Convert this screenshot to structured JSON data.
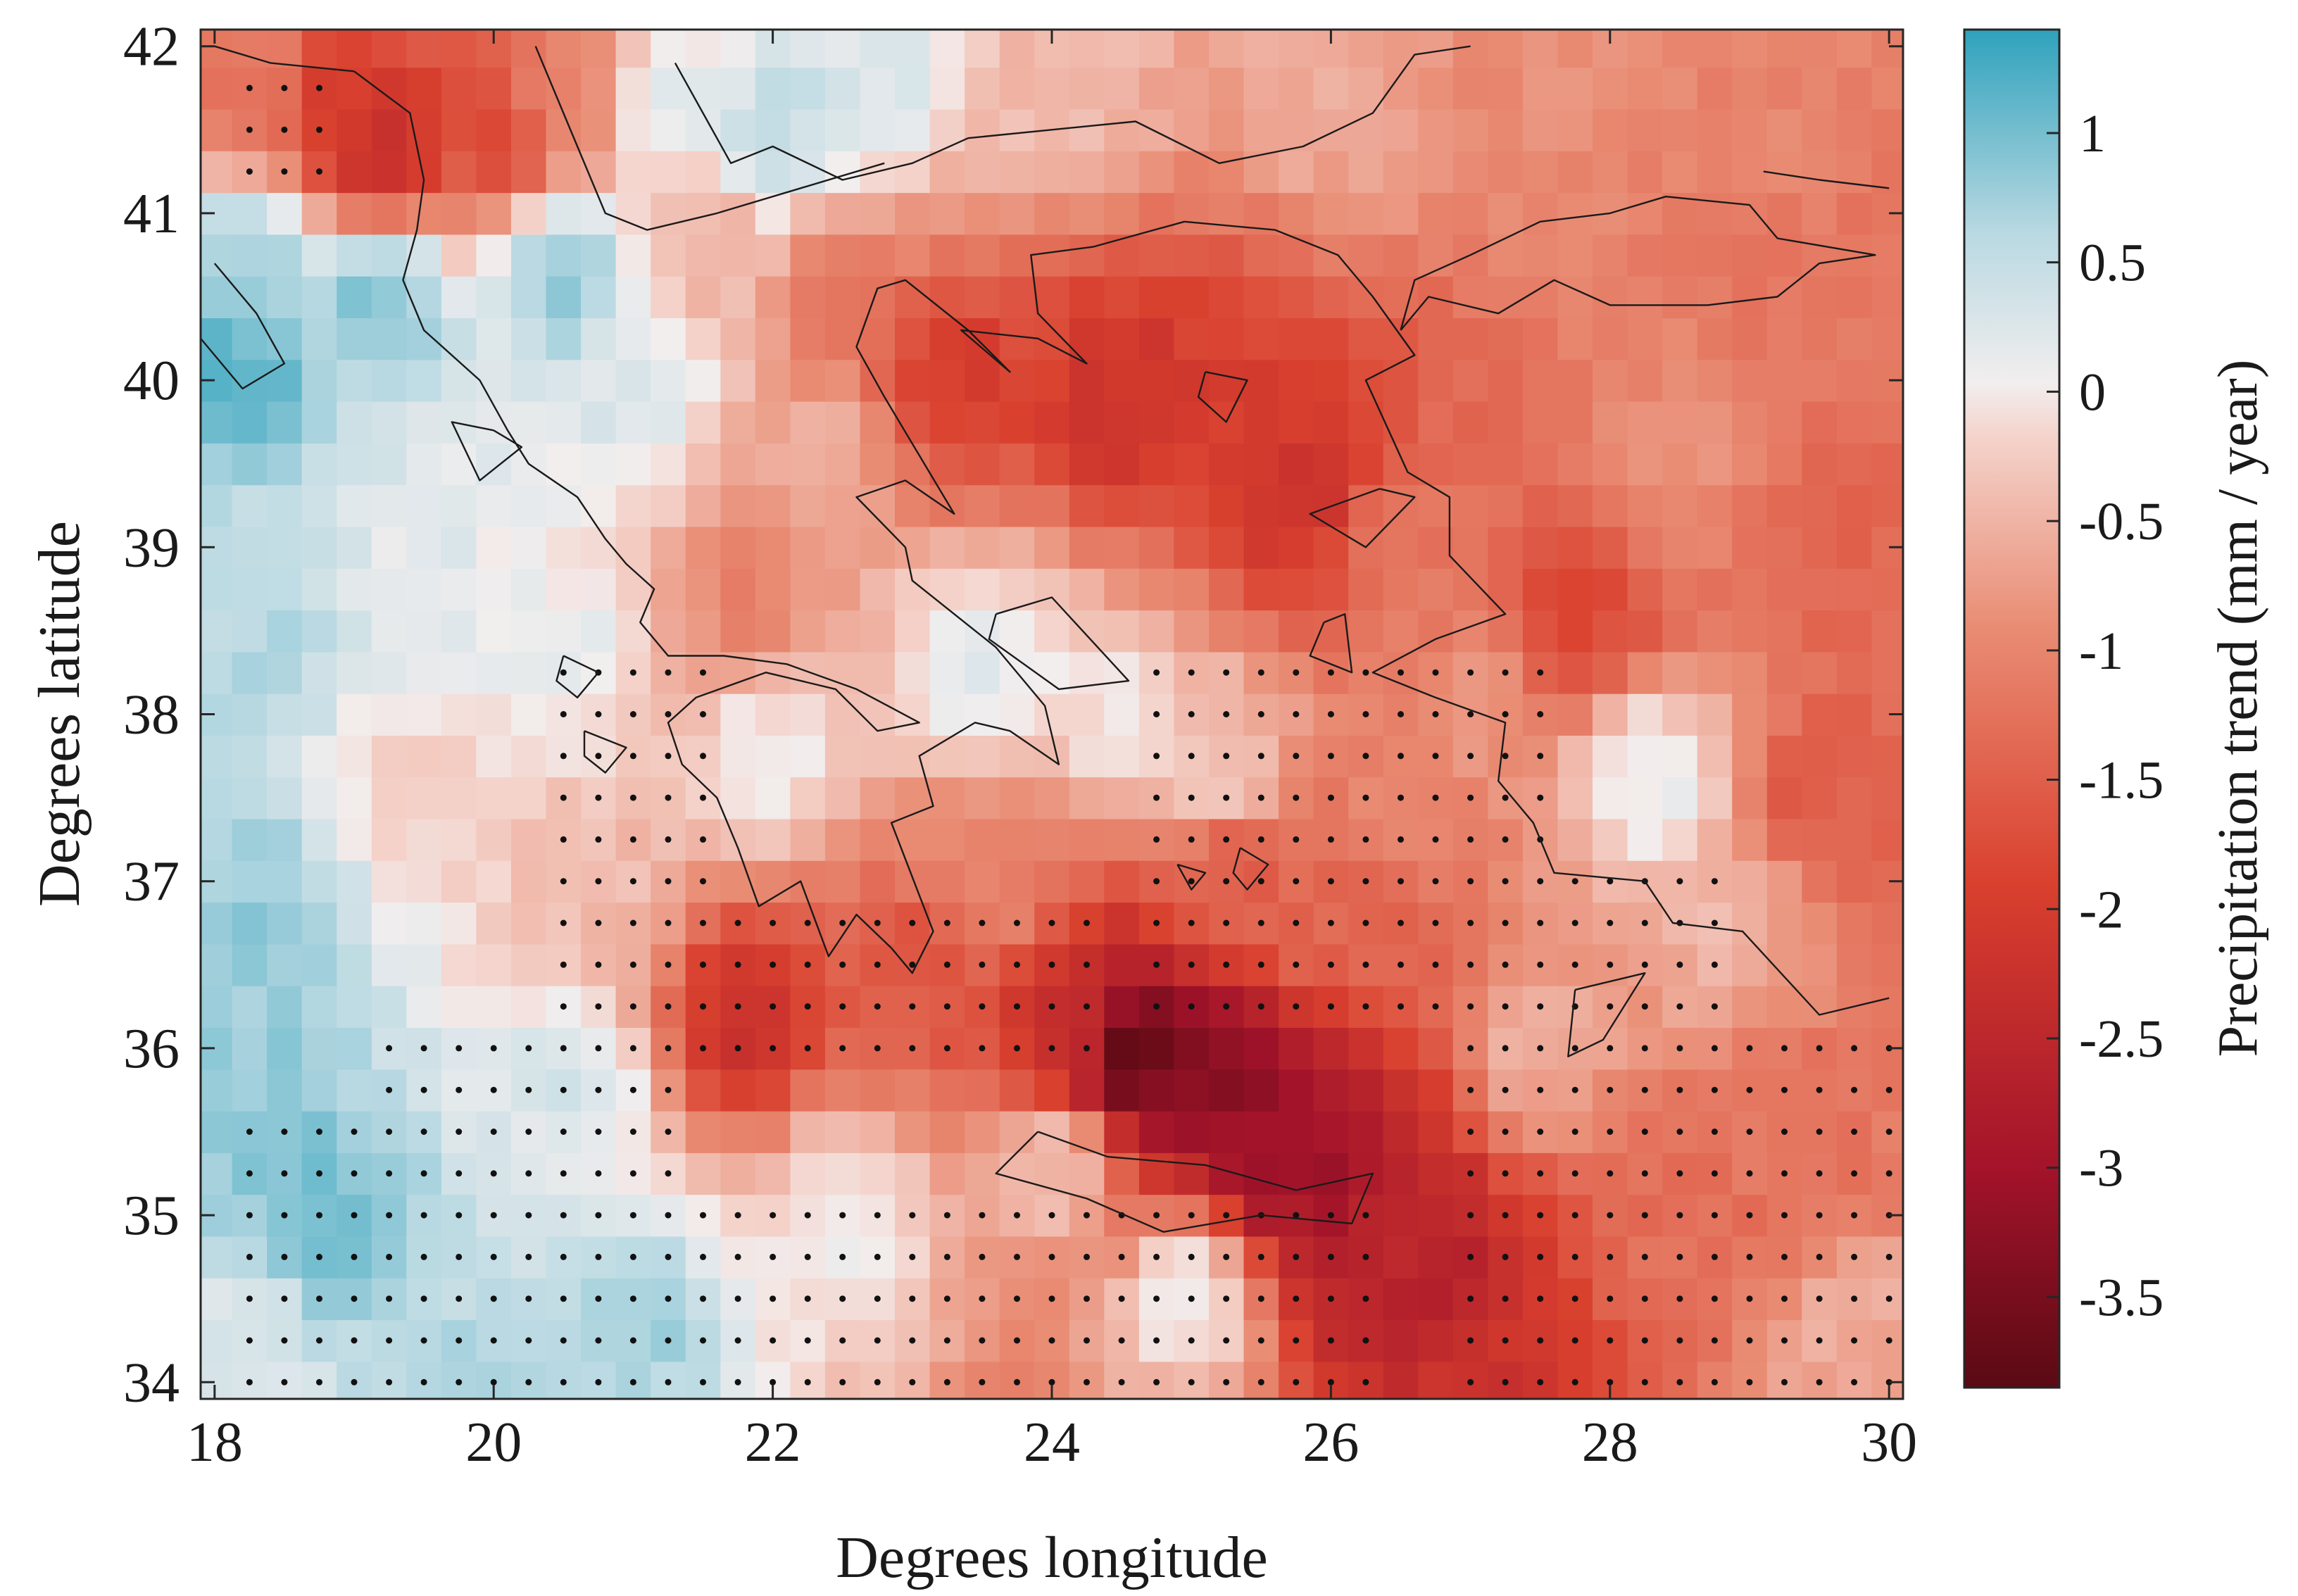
{
  "chart_data": {
    "type": "heatmap",
    "title": "",
    "xlabel": "Degrees longitude",
    "ylabel": "Degrees latitude",
    "xlim": [
      17.9,
      30.1
    ],
    "ylim": [
      33.9,
      42.1
    ],
    "xticks": [
      18,
      20,
      22,
      24,
      26,
      28,
      30
    ],
    "yticks": [
      34,
      35,
      36,
      37,
      38,
      39,
      40,
      41,
      42
    ],
    "grid": false,
    "colorbar": {
      "label": "Precipitation trend (mm / year)",
      "range": [
        -3.85,
        1.4
      ],
      "ticks": [
        1,
        0.5,
        0,
        -0.5,
        -1,
        -1.5,
        -2,
        -2.5,
        -3,
        -3.5
      ],
      "tick_labels": [
        "1",
        "0.5",
        "0",
        "-0.5",
        "-1",
        "-1.5",
        "-2",
        "-2.5",
        "-3",
        "-3.5"
      ],
      "colormap": [
        "#5a0a14",
        "#a3132a",
        "#d9402e",
        "#e98c74",
        "#f4d3cb",
        "#f2eeee",
        "#b9d9e2",
        "#2fa2bc"
      ]
    },
    "grid_resolution_deg": 0.25,
    "trend_field_description": "cells estimated by inverse-distance blending of sampled trend values",
    "trend_anchor_points": [
      {
        "lon": 18.3,
        "lat": 41.8,
        "value": -1.2
      },
      {
        "lon": 18.9,
        "lat": 41.6,
        "value": -2.0
      },
      {
        "lon": 19.2,
        "lat": 41.4,
        "value": -2.3
      },
      {
        "lon": 20.0,
        "lat": 41.5,
        "value": -1.8
      },
      {
        "lon": 20.5,
        "lat": 41.7,
        "value": -1.0
      },
      {
        "lon": 21.3,
        "lat": 41.7,
        "value": 0.1
      },
      {
        "lon": 22.0,
        "lat": 41.5,
        "value": 0.5
      },
      {
        "lon": 22.7,
        "lat": 41.9,
        "value": 0.3
      },
      {
        "lon": 24.0,
        "lat": 41.8,
        "value": -0.4
      },
      {
        "lon": 26.0,
        "lat": 41.7,
        "value": -0.6
      },
      {
        "lon": 27.5,
        "lat": 41.8,
        "value": -0.9
      },
      {
        "lon": 29.0,
        "lat": 41.5,
        "value": -1.0
      },
      {
        "lon": 18.3,
        "lat": 40.7,
        "value": 0.7
      },
      {
        "lon": 19.2,
        "lat": 40.5,
        "value": 0.9
      },
      {
        "lon": 20.5,
        "lat": 40.6,
        "value": 0.8
      },
      {
        "lon": 21.0,
        "lat": 40.0,
        "value": 0.3
      },
      {
        "lon": 18.2,
        "lat": 40.1,
        "value": 1.1
      },
      {
        "lon": 21.5,
        "lat": 40.8,
        "value": -0.5
      },
      {
        "lon": 22.5,
        "lat": 40.5,
        "value": -1.2
      },
      {
        "lon": 23.3,
        "lat": 40.0,
        "value": -2.0
      },
      {
        "lon": 24.5,
        "lat": 39.9,
        "value": -2.2
      },
      {
        "lon": 25.5,
        "lat": 39.7,
        "value": -2.0
      },
      {
        "lon": 25.8,
        "lat": 39.3,
        "value": -2.2
      },
      {
        "lon": 26.5,
        "lat": 39.0,
        "value": -1.2
      },
      {
        "lon": 27.8,
        "lat": 38.6,
        "value": -1.8
      },
      {
        "lon": 28.5,
        "lat": 39.5,
        "value": -0.9
      },
      {
        "lon": 29.5,
        "lat": 40.5,
        "value": -1.2
      },
      {
        "lon": 29.5,
        "lat": 39.0,
        "value": -1.4
      },
      {
        "lon": 22.3,
        "lat": 39.5,
        "value": -0.6
      },
      {
        "lon": 21.8,
        "lat": 38.7,
        "value": -1.0
      },
      {
        "lon": 22.0,
        "lat": 37.8,
        "value": 0.0
      },
      {
        "lon": 23.5,
        "lat": 38.3,
        "value": 0.2
      },
      {
        "lon": 24.5,
        "lat": 38.0,
        "value": 0.0
      },
      {
        "lon": 25.2,
        "lat": 37.7,
        "value": -0.3
      },
      {
        "lon": 20.5,
        "lat": 38.5,
        "value": 0.1
      },
      {
        "lon": 19.5,
        "lat": 39.0,
        "value": 0.2
      },
      {
        "lon": 18.3,
        "lat": 38.5,
        "value": 0.6
      },
      {
        "lon": 18.3,
        "lat": 36.8,
        "value": 0.8
      },
      {
        "lon": 18.3,
        "lat": 35.8,
        "value": 0.8
      },
      {
        "lon": 18.7,
        "lat": 35.0,
        "value": 1.0
      },
      {
        "lon": 18.2,
        "lat": 34.3,
        "value": 0.3
      },
      {
        "lon": 19.5,
        "lat": 37.5,
        "value": -0.2
      },
      {
        "lon": 20.7,
        "lat": 36.8,
        "value": -0.4
      },
      {
        "lon": 20.5,
        "lat": 35.8,
        "value": 0.3
      },
      {
        "lon": 21.0,
        "lat": 34.3,
        "value": 0.7
      },
      {
        "lon": 20.0,
        "lat": 34.1,
        "value": 0.6
      },
      {
        "lon": 21.8,
        "lat": 36.2,
        "value": -2.2
      },
      {
        "lon": 23.0,
        "lat": 36.5,
        "value": -1.6
      },
      {
        "lon": 23.5,
        "lat": 37.0,
        "value": -1.0
      },
      {
        "lon": 22.5,
        "lat": 35.0,
        "value": 0.0
      },
      {
        "lon": 24.2,
        "lat": 36.1,
        "value": -2.4
      },
      {
        "lon": 24.6,
        "lat": 36.0,
        "value": -3.8
      },
      {
        "lon": 25.2,
        "lat": 35.8,
        "value": -3.3
      },
      {
        "lon": 25.6,
        "lat": 35.4,
        "value": -3.1
      },
      {
        "lon": 26.0,
        "lat": 35.2,
        "value": -3.0
      },
      {
        "lon": 26.3,
        "lat": 34.9,
        "value": -2.6
      },
      {
        "lon": 26.7,
        "lat": 34.6,
        "value": -2.6
      },
      {
        "lon": 27.0,
        "lat": 34.1,
        "value": -2.2
      },
      {
        "lon": 25.3,
        "lat": 37.0,
        "value": -1.5
      },
      {
        "lon": 26.0,
        "lat": 36.8,
        "value": -1.4
      },
      {
        "lon": 24.0,
        "lat": 35.3,
        "value": -0.4
      },
      {
        "lon": 25.0,
        "lat": 34.5,
        "value": 0.0
      },
      {
        "lon": 26.5,
        "lat": 37.5,
        "value": -1.0
      },
      {
        "lon": 27.0,
        "lat": 38.0,
        "value": -0.8
      },
      {
        "lon": 28.3,
        "lat": 37.6,
        "value": 0.1
      },
      {
        "lon": 28.8,
        "lat": 36.8,
        "value": -0.5
      },
      {
        "lon": 27.5,
        "lat": 36.0,
        "value": -0.6
      },
      {
        "lon": 28.5,
        "lat": 35.0,
        "value": -1.3
      },
      {
        "lon": 29.5,
        "lat": 35.5,
        "value": -1.2
      },
      {
        "lon": 29.5,
        "lat": 37.5,
        "value": -1.5
      },
      {
        "lon": 29.8,
        "lat": 34.2,
        "value": -0.6
      }
    ],
    "significance_regions": [
      {
        "lon_min": 18.2,
        "lon_max": 18.9,
        "lat_min": 41.1,
        "lat_max": 41.8
      },
      {
        "lon_min": 20.3,
        "lon_max": 21.6,
        "lat_min": 36.0,
        "lat_max": 38.4
      },
      {
        "lon_min": 21.6,
        "lon_max": 24.4,
        "lat_min": 35.9,
        "lat_max": 36.9
      },
      {
        "lon_min": 24.6,
        "lon_max": 27.6,
        "lat_min": 36.1,
        "lat_max": 38.4
      },
      {
        "lon_min": 27.4,
        "lon_max": 28.8,
        "lat_min": 35.7,
        "lat_max": 37.0
      },
      {
        "lon_min": 26.8,
        "lon_max": 30.0,
        "lat_min": 34.0,
        "lat_max": 36.0
      },
      {
        "lon_min": 19.2,
        "lon_max": 21.4,
        "lat_min": 34.0,
        "lat_max": 36.0
      },
      {
        "lon_min": 21.4,
        "lon_max": 26.3,
        "lat_min": 34.0,
        "lat_max": 35.0
      },
      {
        "lon_min": 18.2,
        "lon_max": 19.2,
        "lat_min": 34.0,
        "lat_max": 35.6
      }
    ],
    "significance_spacing_deg": 0.25,
    "coastlines": [
      [
        [
          19.0,
          41.85
        ],
        [
          19.4,
          41.6
        ],
        [
          19.5,
          41.2
        ],
        [
          19.45,
          40.9
        ],
        [
          19.35,
          40.6
        ],
        [
          19.5,
          40.3
        ],
        [
          19.9,
          40.0
        ],
        [
          20.1,
          39.7
        ],
        [
          20.25,
          39.5
        ],
        [
          20.6,
          39.3
        ],
        [
          20.8,
          39.05
        ],
        [
          20.95,
          38.9
        ],
        [
          21.15,
          38.75
        ],
        [
          21.05,
          38.55
        ],
        [
          21.25,
          38.35
        ],
        [
          21.65,
          38.35
        ],
        [
          22.1,
          38.3
        ],
        [
          22.6,
          38.15
        ],
        [
          23.05,
          37.95
        ],
        [
          22.75,
          37.9
        ],
        [
          22.45,
          38.15
        ],
        [
          21.95,
          38.25
        ],
        [
          21.45,
          38.1
        ],
        [
          21.25,
          37.95
        ],
        [
          21.35,
          37.7
        ],
        [
          21.6,
          37.5
        ],
        [
          21.75,
          37.2
        ],
        [
          21.9,
          36.85
        ],
        [
          22.2,
          37.0
        ],
        [
          22.4,
          36.55
        ],
        [
          22.6,
          36.8
        ],
        [
          22.85,
          36.6
        ],
        [
          23.0,
          36.45
        ],
        [
          23.15,
          36.7
        ],
        [
          22.85,
          37.35
        ],
        [
          23.15,
          37.45
        ],
        [
          23.05,
          37.75
        ],
        [
          23.45,
          37.95
        ],
        [
          23.7,
          37.9
        ],
        [
          24.05,
          37.7
        ],
        [
          23.95,
          38.05
        ],
        [
          23.6,
          38.4
        ],
        [
          23.0,
          38.8
        ],
        [
          22.95,
          39.0
        ],
        [
          22.6,
          39.3
        ],
        [
          22.95,
          39.4
        ],
        [
          23.3,
          39.2
        ],
        [
          23.05,
          39.55
        ],
        [
          22.8,
          39.9
        ],
        [
          22.6,
          40.2
        ],
        [
          22.75,
          40.55
        ],
        [
          22.95,
          40.6
        ],
        [
          23.4,
          40.3
        ],
        [
          23.7,
          40.05
        ],
        [
          23.35,
          40.3
        ],
        [
          23.9,
          40.25
        ],
        [
          24.25,
          40.1
        ],
        [
          23.9,
          40.4
        ],
        [
          23.85,
          40.75
        ],
        [
          24.3,
          40.8
        ],
        [
          24.95,
          40.95
        ],
        [
          25.6,
          40.9
        ],
        [
          26.05,
          40.75
        ],
        [
          26.3,
          40.5
        ],
        [
          26.6,
          40.15
        ],
        [
          26.25,
          40.0
        ],
        [
          26.55,
          39.45
        ],
        [
          26.85,
          39.3
        ],
        [
          26.85,
          38.95
        ],
        [
          27.25,
          38.6
        ],
        [
          26.75,
          38.45
        ],
        [
          26.3,
          38.25
        ],
        [
          26.75,
          38.1
        ],
        [
          27.25,
          37.95
        ],
        [
          27.2,
          37.6
        ],
        [
          27.45,
          37.35
        ],
        [
          27.6,
          37.05
        ],
        [
          28.25,
          37.0
        ],
        [
          28.45,
          36.75
        ],
        [
          28.95,
          36.7
        ],
        [
          29.5,
          36.2
        ],
        [
          30.0,
          36.3
        ]
      ],
      [
        [
          26.5,
          40.3
        ],
        [
          26.7,
          40.5
        ],
        [
          27.2,
          40.4
        ],
        [
          27.6,
          40.6
        ],
        [
          28.0,
          40.45
        ],
        [
          28.7,
          40.45
        ],
        [
          29.2,
          40.5
        ],
        [
          29.5,
          40.7
        ],
        [
          29.9,
          40.75
        ],
        [
          29.2,
          40.85
        ],
        [
          29.0,
          41.05
        ],
        [
          28.4,
          41.1
        ],
        [
          28.0,
          41.0
        ],
        [
          27.5,
          40.95
        ],
        [
          27.0,
          40.75
        ],
        [
          26.6,
          40.6
        ],
        [
          26.5,
          40.3
        ]
      ],
      [
        [
          29.1,
          41.25
        ],
        [
          29.5,
          41.2
        ],
        [
          30.0,
          41.15
        ]
      ],
      [
        [
          21.3,
          41.9
        ],
        [
          21.7,
          41.3
        ],
        [
          22.0,
          41.4
        ],
        [
          22.5,
          41.2
        ],
        [
          23.0,
          41.3
        ],
        [
          23.4,
          41.45
        ],
        [
          24.0,
          41.5
        ],
        [
          24.6,
          41.55
        ],
        [
          25.2,
          41.3
        ],
        [
          25.8,
          41.4
        ],
        [
          26.3,
          41.6
        ],
        [
          26.6,
          41.95
        ],
        [
          27.0,
          42.0
        ]
      ],
      [
        [
          20.3,
          42.0
        ],
        [
          20.6,
          41.4
        ],
        [
          20.8,
          41.0
        ],
        [
          21.1,
          40.9
        ],
        [
          21.6,
          41.0
        ],
        [
          22.2,
          41.15
        ],
        [
          22.8,
          41.3
        ]
      ],
      [
        [
          18.0,
          40.7
        ],
        [
          18.3,
          40.4
        ],
        [
          18.5,
          40.1
        ],
        [
          18.2,
          39.95
        ],
        [
          17.9,
          40.25
        ]
      ],
      [
        [
          18.0,
          42.0
        ],
        [
          18.4,
          41.9
        ],
        [
          19.0,
          41.85
        ]
      ],
      [
        [
          20.0,
          39.7
        ],
        [
          20.2,
          39.6
        ],
        [
          19.9,
          39.4
        ],
        [
          19.7,
          39.75
        ],
        [
          20.0,
          39.7
        ]
      ],
      [
        [
          20.5,
          38.35
        ],
        [
          20.75,
          38.25
        ],
        [
          20.6,
          38.1
        ],
        [
          20.45,
          38.2
        ],
        [
          20.5,
          38.35
        ]
      ],
      [
        [
          20.65,
          37.9
        ],
        [
          20.95,
          37.8
        ],
        [
          20.8,
          37.65
        ],
        [
          20.65,
          37.75
        ],
        [
          20.65,
          37.9
        ]
      ],
      [
        [
          23.6,
          38.6
        ],
        [
          24.0,
          38.7
        ],
        [
          24.55,
          38.2
        ],
        [
          24.05,
          38.15
        ],
        [
          23.55,
          38.45
        ],
        [
          23.6,
          38.6
        ]
      ],
      [
        [
          23.9,
          35.5
        ],
        [
          24.4,
          35.35
        ],
        [
          25.1,
          35.3
        ],
        [
          25.75,
          35.15
        ],
        [
          26.3,
          35.25
        ],
        [
          26.15,
          34.95
        ],
        [
          25.5,
          35.0
        ],
        [
          24.8,
          34.9
        ],
        [
          24.25,
          35.1
        ],
        [
          23.6,
          35.25
        ],
        [
          23.9,
          35.5
        ]
      ],
      [
        [
          27.75,
          36.35
        ],
        [
          28.25,
          36.45
        ],
        [
          27.95,
          36.05
        ],
        [
          27.7,
          35.95
        ],
        [
          27.75,
          36.35
        ]
      ],
      [
        [
          25.95,
          38.55
        ],
        [
          26.1,
          38.6
        ],
        [
          26.15,
          38.25
        ],
        [
          25.85,
          38.35
        ],
        [
          25.95,
          38.55
        ]
      ],
      [
        [
          26.35,
          39.35
        ],
        [
          26.6,
          39.3
        ],
        [
          26.25,
          39.0
        ],
        [
          25.85,
          39.2
        ],
        [
          26.35,
          39.35
        ]
      ],
      [
        [
          25.1,
          40.05
        ],
        [
          25.4,
          40.0
        ],
        [
          25.25,
          39.75
        ],
        [
          25.05,
          39.9
        ],
        [
          25.1,
          40.05
        ]
      ],
      [
        [
          25.35,
          37.2
        ],
        [
          25.55,
          37.1
        ],
        [
          25.4,
          36.95
        ],
        [
          25.3,
          37.05
        ],
        [
          25.35,
          37.2
        ]
      ],
      [
        [
          24.9,
          37.1
        ],
        [
          25.1,
          37.05
        ],
        [
          25.0,
          36.95
        ],
        [
          24.9,
          37.1
        ]
      ]
    ]
  }
}
